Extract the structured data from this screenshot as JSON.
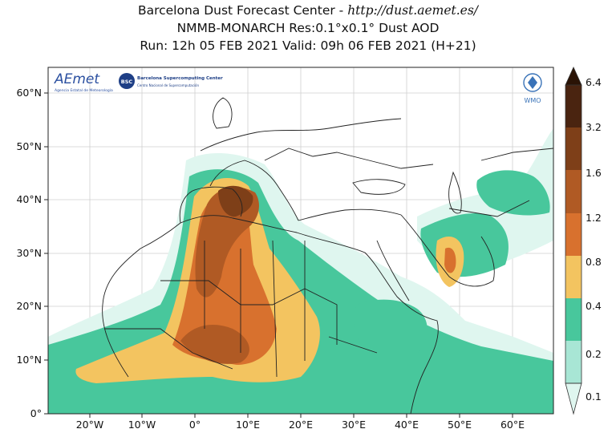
{
  "header": {
    "line1_prefix": "Barcelona Dust Forecast Center - ",
    "line1_url": "http://dust.aemet.es/",
    "line2": "NMMB-MONARCH   Res:0.1°x0.1°   Dust AOD",
    "line3": "Run: 12h 05 FEB 2021   Valid: 09h 06 FEB 2021 (H+21)"
  },
  "axes": {
    "lon_labels": [
      "20°W",
      "10°W",
      "0°",
      "10°E",
      "20°E",
      "30°E",
      "40°E",
      "50°E",
      "60°E"
    ],
    "lat_labels": [
      "0°",
      "10°N",
      "20°N",
      "30°N",
      "40°N",
      "50°N",
      "60°N"
    ]
  },
  "colorbar": {
    "labels": [
      "0.1",
      "0.2",
      "0.4",
      "0.8",
      "1.2",
      "1.6",
      "3.2",
      "6.4"
    ],
    "colors": [
      "#dff6ef",
      "#a8e6d5",
      "#48c79c",
      "#f3c460",
      "#d8712e",
      "#b05a24",
      "#7e3f18",
      "#4a2410",
      "#2a1305"
    ]
  },
  "logos": {
    "aemet": "AEmet",
    "aemet_sub": "Agencia Estatal de Meteorología",
    "bsc": "BSC",
    "bsc_title": "Barcelona Supercomputing Center",
    "bsc_sub": "Centro Nacional de Supercomputación",
    "wmo": "WMO"
  }
}
